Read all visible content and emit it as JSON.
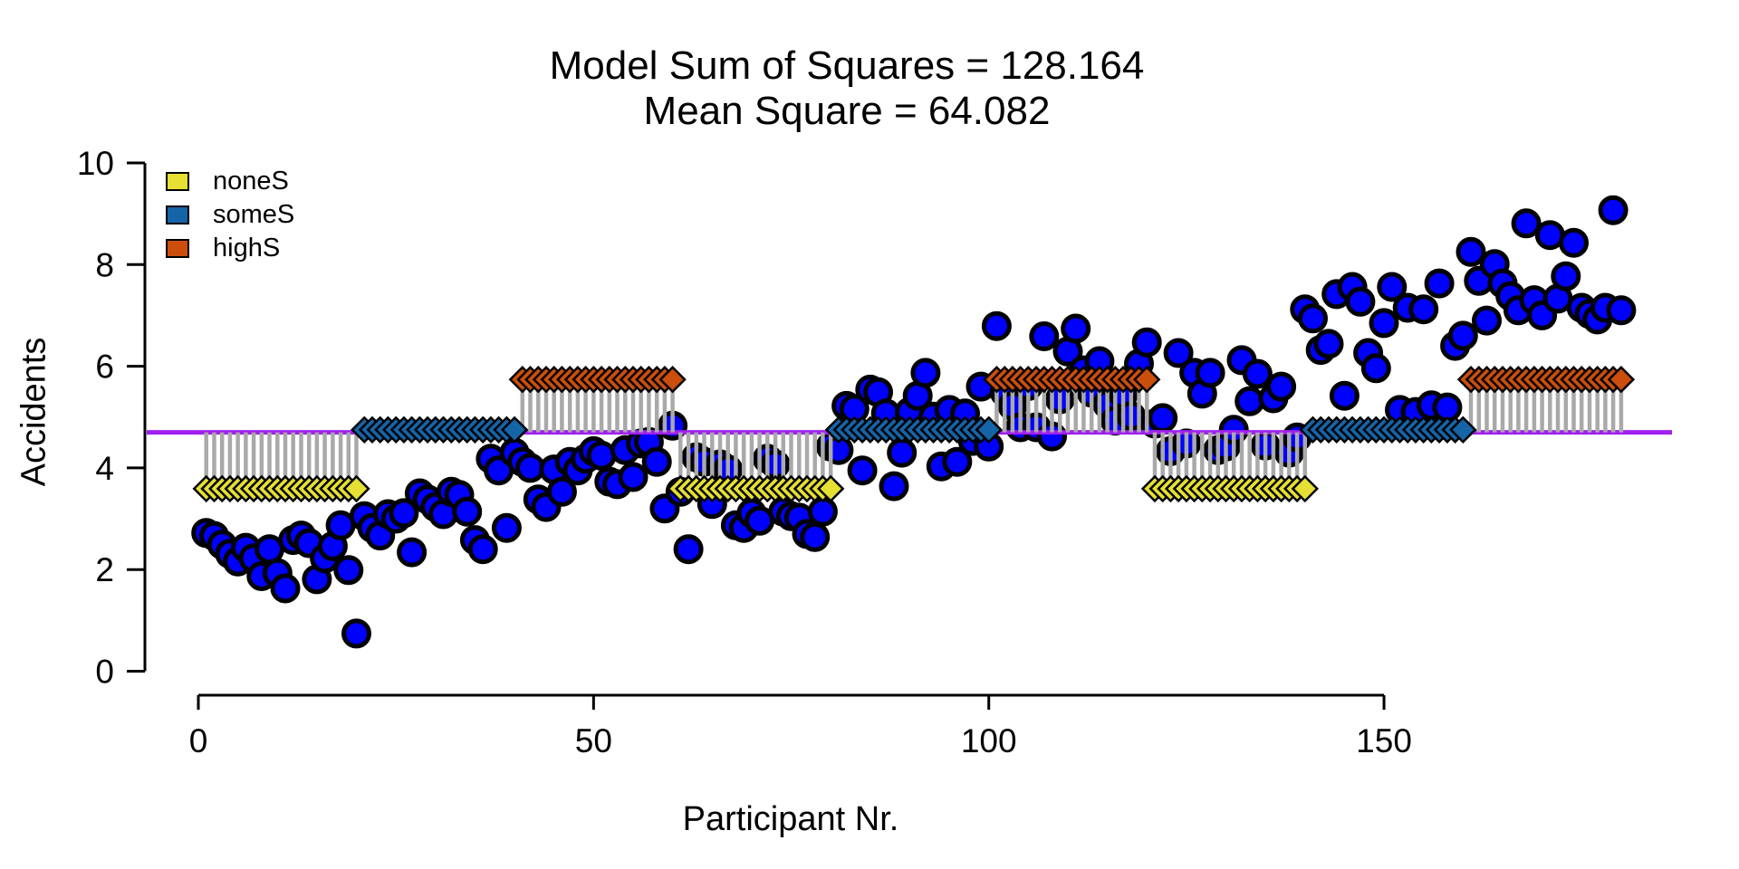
{
  "chart_data": {
    "type": "scatter",
    "title": "Model Sum of Squares = 128.164",
    "subtitle": "Mean Square = 64.082",
    "xlabel": "Participant Nr.",
    "ylabel": "Accidents",
    "x_ticks": [
      0,
      50,
      100,
      150
    ],
    "y_ticks": [
      0,
      2,
      4,
      6,
      8,
      10
    ],
    "xlim": [
      -6,
      187
    ],
    "ylim": [
      0,
      10
    ],
    "grand_mean": 4.7,
    "grand_mean_line_color": "#A020F0",
    "point_color": "#0000FF",
    "point_outline_color": "#000000",
    "residual_line_color": "#A9A9A9",
    "diamond_outline_color": "#000000",
    "groups": [
      {
        "label": "noneS",
        "color": "#E6DF34",
        "mean": 3.59
      },
      {
        "label": "someS",
        "color": "#1564A8",
        "mean": 4.75
      },
      {
        "label": "highS",
        "color": "#CC4E0C",
        "mean": 5.74
      }
    ],
    "segments": [
      {
        "group": 0,
        "from": 1,
        "to": 20
      },
      {
        "group": 1,
        "from": 21,
        "to": 40
      },
      {
        "group": 2,
        "from": 41,
        "to": 60
      },
      {
        "group": 0,
        "from": 61,
        "to": 80
      },
      {
        "group": 1,
        "from": 81,
        "to": 100
      },
      {
        "group": 2,
        "from": 101,
        "to": 120
      },
      {
        "group": 0,
        "from": 121,
        "to": 140
      },
      {
        "group": 1,
        "from": 141,
        "to": 160
      },
      {
        "group": 2,
        "from": 161,
        "to": 180
      }
    ],
    "points": [
      2.72,
      2.66,
      2.49,
      2.31,
      2.16,
      2.43,
      2.22,
      1.87,
      2.4,
      1.93,
      1.63,
      2.58,
      2.67,
      2.52,
      1.81,
      2.22,
      2.46,
      2.87,
      1.99,
      0.74,
      3.05,
      2.82,
      2.67,
      3.09,
      3.0,
      3.11,
      2.34,
      3.5,
      3.38,
      3.23,
      3.09,
      3.53,
      3.47,
      3.14,
      2.58,
      2.4,
      4.18,
      3.95,
      2.82,
      4.3,
      4.12,
      4.0,
      3.38,
      3.23,
      3.97,
      3.53,
      4.12,
      3.95,
      4.18,
      4.33,
      4.24,
      3.73,
      3.68,
      4.35,
      3.82,
      4.48,
      4.51,
      4.12,
      3.2,
      4.83,
      3.53,
      2.4,
      4.21,
      4.12,
      3.29,
      4.07,
      3.97,
      2.87,
      2.82,
      3.11,
      2.96,
      4.18,
      4.07,
      3.14,
      3.05,
      3.02,
      2.7,
      2.64,
      3.14,
      4.42,
      4.35,
      5.22,
      5.16,
      3.95,
      5.54,
      5.49,
      5.07,
      3.64,
      4.3,
      5.1,
      5.42,
      5.87,
      5.01,
      4.03,
      5.14,
      4.12,
      5.07,
      4.53,
      5.6,
      4.42,
      6.79,
      5.49,
      5.22,
      4.8,
      5.61,
      4.8,
      6.59,
      4.62,
      5.35,
      6.29,
      6.74,
      5.92,
      5.48,
      6.1,
      5.25,
      4.93,
      5.45,
      5.02,
      6.05,
      6.47,
      4.87,
      4.98,
      4.33,
      6.26,
      4.48,
      5.87,
      5.46,
      5.87,
      4.35,
      4.42,
      4.75,
      6.12,
      5.31,
      5.85,
      4.44,
      5.37,
      5.6,
      4.3,
      4.6,
      7.12,
      6.94,
      6.32,
      6.44,
      7.42,
      5.42,
      7.56,
      7.27,
      6.26,
      5.96,
      6.85,
      7.56,
      5.14,
      7.15,
      5.1,
      7.12,
      5.23,
      7.63,
      5.19,
      6.4,
      6.6,
      8.25,
      7.68,
      6.9,
      8.01,
      7.63,
      7.38,
      7.1,
      8.81,
      7.3,
      7.0,
      8.58,
      7.33,
      7.77,
      8.43,
      7.15,
      7.03,
      6.92,
      7.15,
      9.07,
      7.1
    ]
  }
}
